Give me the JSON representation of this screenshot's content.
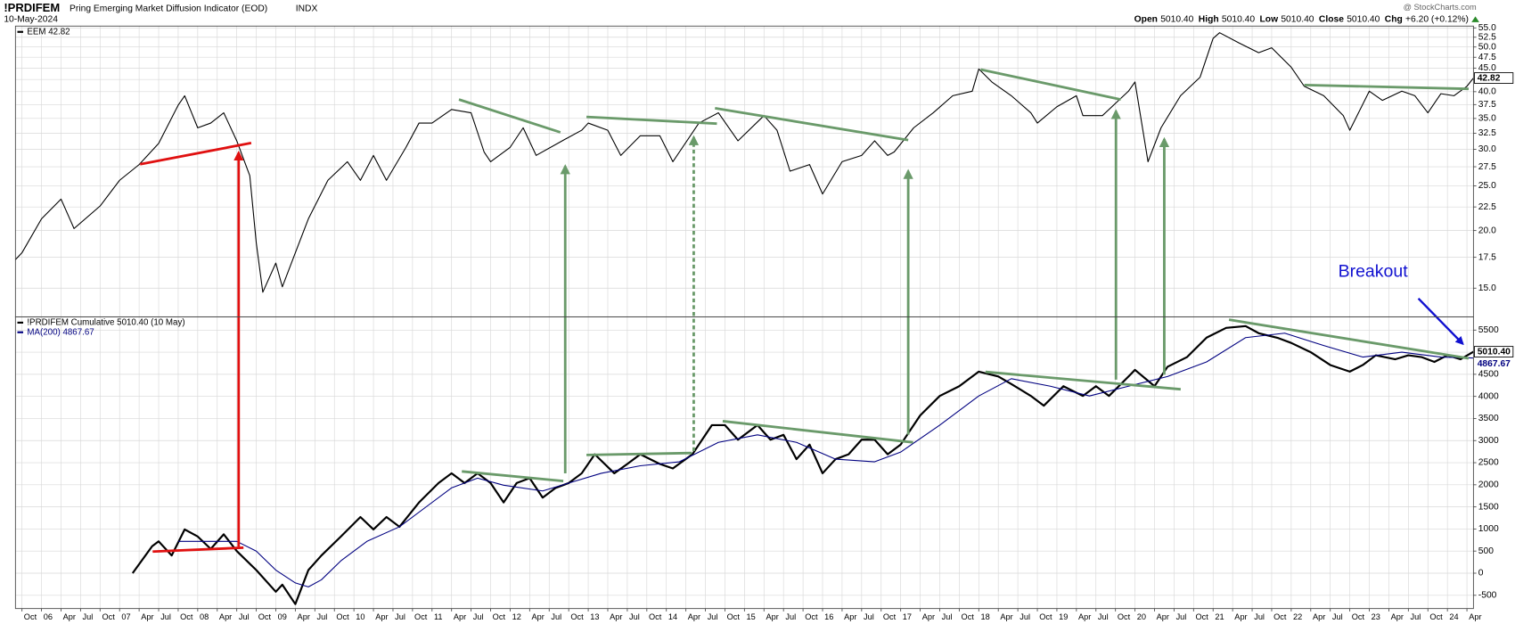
{
  "header": {
    "symbol": "!PRDIFEM",
    "description": "Pring Emerging Market Diffusion Indicator (EOD)",
    "exchange": "INDX",
    "date": "10-May-2024",
    "source": "@ StockCharts.com",
    "quote": [
      {
        "label": "Open",
        "value": "5010.40"
      },
      {
        "label": "High",
        "value": "5010.40"
      },
      {
        "label": "Low",
        "value": "5010.40"
      },
      {
        "label": "Close",
        "value": "5010.40"
      },
      {
        "label": "Chg",
        "value": "+6.20 (+0.12%)"
      }
    ]
  },
  "chart_data": [
    {
      "type": "line",
      "log_scale": true,
      "grid": true,
      "xlim": [
        "2005-09",
        "2024-05"
      ],
      "ylim": [
        13,
        55.5
      ],
      "yticks": [
        {
          "value": 15,
          "label": "15.0"
        },
        {
          "value": 17.5,
          "label": "17.5"
        },
        {
          "value": 20,
          "label": "20.0"
        },
        {
          "value": 22.5,
          "label": "22.5"
        },
        {
          "value": 25,
          "label": "25.0"
        },
        {
          "value": 27.5,
          "label": "27.5"
        },
        {
          "value": 30,
          "label": "30.0"
        },
        {
          "value": 32.5,
          "label": "32.5"
        },
        {
          "value": 35,
          "label": "35.0"
        },
        {
          "value": 37.5,
          "label": "37.5"
        },
        {
          "value": 40,
          "label": "40.0"
        },
        {
          "value": 42.5,
          "label": "42.5"
        },
        {
          "value": 45,
          "label": "45.0"
        },
        {
          "value": 47.5,
          "label": "47.5"
        },
        {
          "value": 50,
          "label": "50.0"
        },
        {
          "value": 52.5,
          "label": "52.5"
        },
        {
          "value": 55,
          "label": "55.0"
        }
      ],
      "series": [
        {
          "name": "EEM 42.82",
          "color": "#000000",
          "last_value_label": "42.82",
          "x": [
            "2005-09",
            "2005-10",
            "2006-01",
            "2006-04",
            "2006-06",
            "2006-10",
            "2007-01",
            "2007-04",
            "2007-07",
            "2007-10",
            "2007-11",
            "2008-01",
            "2008-03",
            "2008-05",
            "2008-07",
            "2008-09",
            "2008-10",
            "2008-11",
            "2009-01",
            "2009-02",
            "2009-04",
            "2009-06",
            "2009-09",
            "2009-12",
            "2010-02",
            "2010-04",
            "2010-06",
            "2010-09",
            "2010-11",
            "2011-01",
            "2011-04",
            "2011-07",
            "2011-09",
            "2011-10",
            "2012-01",
            "2012-03",
            "2012-05",
            "2012-09",
            "2012-12",
            "2013-01",
            "2013-04",
            "2013-06",
            "2013-09",
            "2013-12",
            "2014-02",
            "2014-06",
            "2014-09",
            "2014-12",
            "2015-04",
            "2015-06",
            "2015-08",
            "2015-11",
            "2016-01",
            "2016-04",
            "2016-07",
            "2016-09",
            "2016-11",
            "2016-12",
            "2017-03",
            "2017-06",
            "2017-09",
            "2017-12",
            "2018-01",
            "2018-03",
            "2018-06",
            "2018-09",
            "2018-10",
            "2019-01",
            "2019-04",
            "2019-05",
            "2019-08",
            "2019-12",
            "2020-01",
            "2020-03",
            "2020-05",
            "2020-08",
            "2020-11",
            "2021-01",
            "2021-02",
            "2021-05",
            "2021-08",
            "2021-10",
            "2022-01",
            "2022-03",
            "2022-06",
            "2022-09",
            "2022-10",
            "2023-01",
            "2023-03",
            "2023-06",
            "2023-08",
            "2023-10",
            "2023-12",
            "2024-02",
            "2024-04",
            "2024-05"
          ],
          "values": [
            17.3,
            17.9,
            21.2,
            23.4,
            20.2,
            22.6,
            25.7,
            27.8,
            30.9,
            37.4,
            39.2,
            33.4,
            34.2,
            36.0,
            31.3,
            26.3,
            18.8,
            14.7,
            17.0,
            15.1,
            17.9,
            21.2,
            25.7,
            28.2,
            25.7,
            29.1,
            25.7,
            30.3,
            34.2,
            34.2,
            36.6,
            36.0,
            29.6,
            28.2,
            30.3,
            33.4,
            29.1,
            31.3,
            33.0,
            34.2,
            33.0,
            29.1,
            32.1,
            32.1,
            28.2,
            34.2,
            36.0,
            31.3,
            35.5,
            33.0,
            26.9,
            27.8,
            24.0,
            28.2,
            29.1,
            31.3,
            29.1,
            29.6,
            33.4,
            36.0,
            39.2,
            40.1,
            44.8,
            42.0,
            39.2,
            36.0,
            34.2,
            37.1,
            39.2,
            35.5,
            35.5,
            40.1,
            42.0,
            28.2,
            33.4,
            39.2,
            43.0,
            52.2,
            53.7,
            51.0,
            48.6,
            49.8,
            45.2,
            41.1,
            39.2,
            35.5,
            33.0,
            40.1,
            38.3,
            40.1,
            39.2,
            36.0,
            39.6,
            39.2,
            41.1,
            42.82
          ]
        }
      ]
    },
    {
      "type": "line",
      "log_scale": false,
      "grid": true,
      "xlim": [
        "2005-09",
        "2024-05"
      ],
      "ylim": [
        -800,
        5800
      ],
      "yticks": [
        -500,
        0,
        500,
        1000,
        1500,
        2000,
        2500,
        3000,
        3500,
        4000,
        4500,
        5000,
        5500
      ],
      "annotation": "Breakout",
      "xticks": [
        {
          "value": "2005-10",
          "label": "Oct"
        },
        {
          "value": "2006-01",
          "label": "06"
        },
        {
          "value": "2006-04",
          "label": "Apr"
        },
        {
          "value": "2006-07",
          "label": "Jul"
        },
        {
          "value": "2006-10",
          "label": "Oct"
        },
        {
          "value": "2007-01",
          "label": "07"
        },
        {
          "value": "2007-04",
          "label": "Apr"
        },
        {
          "value": "2007-07",
          "label": "Jul"
        },
        {
          "value": "2007-10",
          "label": "Oct"
        },
        {
          "value": "2008-01",
          "label": "08"
        },
        {
          "value": "2008-04",
          "label": "Apr"
        },
        {
          "value": "2008-07",
          "label": "Jul"
        },
        {
          "value": "2008-10",
          "label": "Oct"
        },
        {
          "value": "2009-01",
          "label": "09"
        },
        {
          "value": "2009-04",
          "label": "Apr"
        },
        {
          "value": "2009-07",
          "label": "Jul"
        },
        {
          "value": "2009-10",
          "label": "Oct"
        },
        {
          "value": "2010-01",
          "label": "10"
        },
        {
          "value": "2010-04",
          "label": "Apr"
        },
        {
          "value": "2010-07",
          "label": "Jul"
        },
        {
          "value": "2010-10",
          "label": "Oct"
        },
        {
          "value": "2011-01",
          "label": "11"
        },
        {
          "value": "2011-04",
          "label": "Apr"
        },
        {
          "value": "2011-07",
          "label": "Jul"
        },
        {
          "value": "2011-10",
          "label": "Oct"
        },
        {
          "value": "2012-01",
          "label": "12"
        },
        {
          "value": "2012-04",
          "label": "Apr"
        },
        {
          "value": "2012-07",
          "label": "Jul"
        },
        {
          "value": "2012-10",
          "label": "Oct"
        },
        {
          "value": "2013-01",
          "label": "13"
        },
        {
          "value": "2013-04",
          "label": "Apr"
        },
        {
          "value": "2013-07",
          "label": "Jul"
        },
        {
          "value": "2013-10",
          "label": "Oct"
        },
        {
          "value": "2014-01",
          "label": "14"
        },
        {
          "value": "2014-04",
          "label": "Apr"
        },
        {
          "value": "2014-07",
          "label": "Jul"
        },
        {
          "value": "2014-10",
          "label": "Oct"
        },
        {
          "value": "2015-01",
          "label": "15"
        },
        {
          "value": "2015-04",
          "label": "Apr"
        },
        {
          "value": "2015-07",
          "label": "Jul"
        },
        {
          "value": "2015-10",
          "label": "Oct"
        },
        {
          "value": "2016-01",
          "label": "16"
        },
        {
          "value": "2016-04",
          "label": "Apr"
        },
        {
          "value": "2016-07",
          "label": "Jul"
        },
        {
          "value": "2016-10",
          "label": "Oct"
        },
        {
          "value": "2017-01",
          "label": "17"
        },
        {
          "value": "2017-04",
          "label": "Apr"
        },
        {
          "value": "2017-07",
          "label": "Jul"
        },
        {
          "value": "2017-10",
          "label": "Oct"
        },
        {
          "value": "2018-01",
          "label": "18"
        },
        {
          "value": "2018-04",
          "label": "Apr"
        },
        {
          "value": "2018-07",
          "label": "Jul"
        },
        {
          "value": "2018-10",
          "label": "Oct"
        },
        {
          "value": "2019-01",
          "label": "19"
        },
        {
          "value": "2019-04",
          "label": "Apr"
        },
        {
          "value": "2019-07",
          "label": "Jul"
        },
        {
          "value": "2019-10",
          "label": "Oct"
        },
        {
          "value": "2020-01",
          "label": "20"
        },
        {
          "value": "2020-04",
          "label": "Apr"
        },
        {
          "value": "2020-07",
          "label": "Jul"
        },
        {
          "value": "2020-10",
          "label": "Oct"
        },
        {
          "value": "2021-01",
          "label": "21"
        },
        {
          "value": "2021-04",
          "label": "Apr"
        },
        {
          "value": "2021-07",
          "label": "Jul"
        },
        {
          "value": "2021-10",
          "label": "Oct"
        },
        {
          "value": "2022-01",
          "label": "22"
        },
        {
          "value": "2022-04",
          "label": "Apr"
        },
        {
          "value": "2022-07",
          "label": "Jul"
        },
        {
          "value": "2022-10",
          "label": "Oct"
        },
        {
          "value": "2023-01",
          "label": "23"
        },
        {
          "value": "2023-04",
          "label": "Apr"
        },
        {
          "value": "2023-07",
          "label": "Jul"
        },
        {
          "value": "2023-10",
          "label": "Oct"
        },
        {
          "value": "2024-01",
          "label": "24"
        },
        {
          "value": "2024-04",
          "label": "Apr"
        }
      ],
      "series": [
        {
          "name": "!PRDIFEM Cumulative 5010.40 (10 May)",
          "color": "#000000",
          "width": 2,
          "last_value_label": "5010.40",
          "x": [
            "2007-03",
            "2007-06",
            "2007-07",
            "2007-09",
            "2007-11",
            "2008-01",
            "2008-03",
            "2008-05",
            "2008-07",
            "2008-10",
            "2009-01",
            "2009-02",
            "2009-04",
            "2009-06",
            "2009-08",
            "2009-11",
            "2010-02",
            "2010-04",
            "2010-06",
            "2010-08",
            "2010-11",
            "2011-02",
            "2011-04",
            "2011-06",
            "2011-08",
            "2011-10",
            "2011-12",
            "2012-02",
            "2012-04",
            "2012-06",
            "2012-08",
            "2012-10",
            "2012-12",
            "2013-02",
            "2013-05",
            "2013-07",
            "2013-09",
            "2013-12",
            "2014-02",
            "2014-05",
            "2014-08",
            "2014-10",
            "2014-12",
            "2015-03",
            "2015-05",
            "2015-07",
            "2015-09",
            "2015-11",
            "2016-01",
            "2016-03",
            "2016-05",
            "2016-07",
            "2016-09",
            "2016-11",
            "2017-01",
            "2017-04",
            "2017-07",
            "2017-10",
            "2018-01",
            "2018-04",
            "2018-06",
            "2018-09",
            "2018-11",
            "2019-02",
            "2019-05",
            "2019-07",
            "2019-09",
            "2019-12",
            "2020-01",
            "2020-04",
            "2020-06",
            "2020-09",
            "2020-12",
            "2021-03",
            "2021-06",
            "2021-08",
            "2021-11",
            "2022-01",
            "2022-04",
            "2022-07",
            "2022-10",
            "2022-12",
            "2023-02",
            "2023-05",
            "2023-07",
            "2023-09",
            "2023-11",
            "2024-01",
            "2024-03",
            "2024-05"
          ],
          "values": [
            0,
            610,
            720,
            400,
            990,
            830,
            550,
            880,
            500,
            70,
            -420,
            -260,
            -700,
            70,
            400,
            830,
            1270,
            990,
            1270,
            1050,
            1600,
            2040,
            2260,
            2040,
            2260,
            2040,
            1600,
            2040,
            2150,
            1710,
            1930,
            2040,
            2260,
            2690,
            2260,
            2470,
            2690,
            2470,
            2370,
            2690,
            3350,
            3350,
            3020,
            3350,
            3020,
            3130,
            2580,
            2910,
            2260,
            2580,
            2690,
            3020,
            3020,
            2690,
            2910,
            3570,
            4010,
            4230,
            4560,
            4450,
            4280,
            4010,
            3790,
            4230,
            4010,
            4230,
            4010,
            4450,
            4600,
            4230,
            4670,
            4890,
            5330,
            5550,
            5590,
            5430,
            5320,
            5210,
            5000,
            4710,
            4560,
            4710,
            4930,
            4840,
            4930,
            4890,
            4780,
            4930,
            4840,
            5010.4
          ]
        },
        {
          "name": "MA(200) 4867.67",
          "color": "#000080",
          "width": 1,
          "last_value_label": "4867.67",
          "x": [
            "2007-10",
            "2008-04",
            "2008-07",
            "2008-10",
            "2009-01",
            "2009-04",
            "2009-06",
            "2009-08",
            "2009-11",
            "2010-03",
            "2010-08",
            "2010-12",
            "2011-04",
            "2011-08",
            "2011-12",
            "2012-06",
            "2012-10",
            "2013-03",
            "2013-09",
            "2014-03",
            "2014-09",
            "2015-03",
            "2015-09",
            "2016-03",
            "2016-09",
            "2017-01",
            "2017-07",
            "2018-01",
            "2018-06",
            "2018-12",
            "2019-06",
            "2019-12",
            "2020-06",
            "2020-12",
            "2021-06",
            "2021-12",
            "2022-06",
            "2022-12",
            "2023-06",
            "2023-12",
            "2024-05"
          ],
          "values": [
            720,
            720,
            720,
            500,
            70,
            -220,
            -310,
            -150,
            280,
            720,
            1050,
            1490,
            1930,
            2150,
            1990,
            1860,
            2040,
            2260,
            2430,
            2520,
            2960,
            3130,
            2960,
            2580,
            2520,
            2740,
            3350,
            4010,
            4400,
            4230,
            4010,
            4230,
            4450,
            4780,
            5330,
            5430,
            5150,
            4890,
            5000,
            4890,
            4867.67
          ]
        }
      ]
    }
  ]
}
